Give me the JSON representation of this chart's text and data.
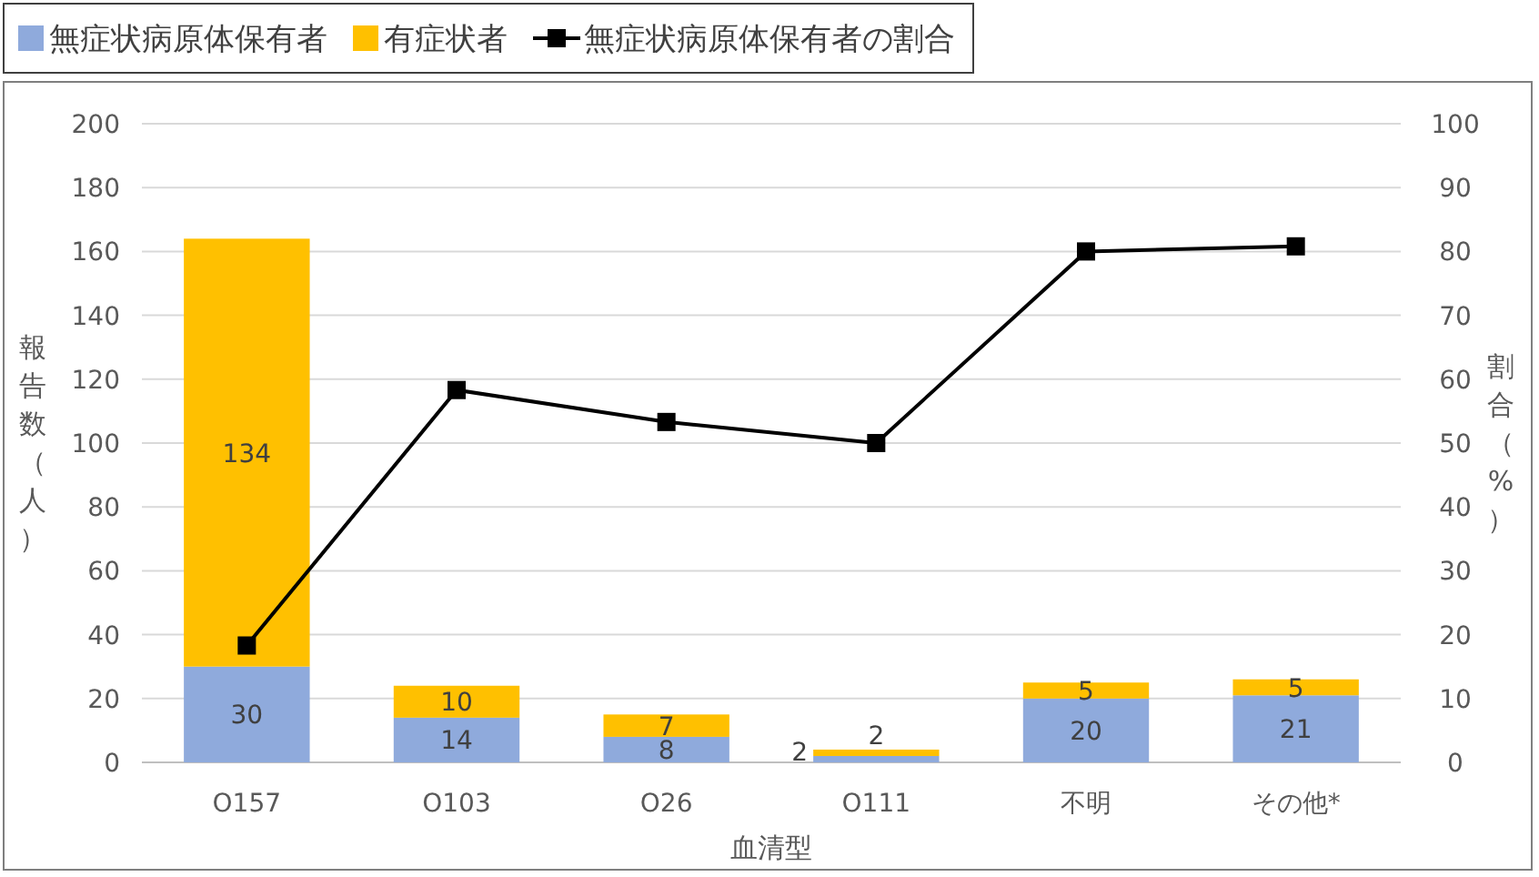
{
  "chart_data": {
    "type": "bar",
    "stacked": true,
    "categories": [
      "O157",
      "O103",
      "O26",
      "O111",
      "不明",
      "その他*"
    ],
    "series": [
      {
        "name": "無症状病原体保有者",
        "color": "#8faadc",
        "values": [
          30,
          14,
          8,
          2,
          20,
          21
        ],
        "value_labels": [
          "30",
          "14",
          "8",
          "2",
          "20",
          "21"
        ]
      },
      {
        "name": "有症状者",
        "color": "#ffc000",
        "values": [
          134,
          10,
          7,
          2,
          5,
          5
        ],
        "value_labels": [
          "134",
          "10",
          "7",
          "2",
          "5",
          "5"
        ]
      },
      {
        "name": "無症状病原体保有者の割合",
        "type": "line",
        "axis": "y2",
        "color": "#000000",
        "marker": "square",
        "values": [
          18.3,
          58.3,
          53.3,
          50,
          80,
          80.8
        ]
      }
    ],
    "xlabel": "血清型",
    "ylabel": "報告数（人）",
    "y2label": "割合（%）",
    "ylim": [
      0,
      200
    ],
    "yticks": [
      0,
      20,
      40,
      60,
      80,
      100,
      120,
      140,
      160,
      180,
      200
    ],
    "y2lim": [
      0,
      100
    ],
    "y2ticks": [
      0,
      10,
      20,
      30,
      40,
      50,
      60,
      70,
      80,
      90,
      100
    ],
    "grid": "y",
    "legend": "top left"
  }
}
